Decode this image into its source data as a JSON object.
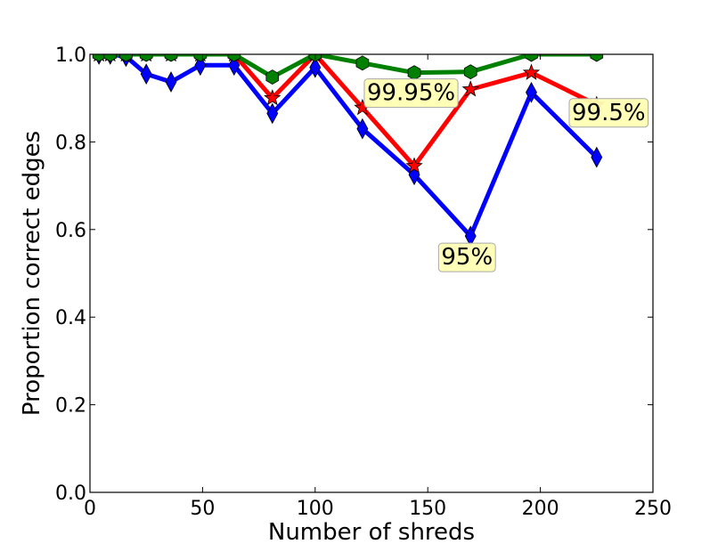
{
  "chart_data": {
    "type": "line",
    "title": "",
    "xlabel": "Number of shreds",
    "ylabel": "Proportion correct edges",
    "xlim": [
      0,
      250
    ],
    "ylim": [
      0.0,
      1.0
    ],
    "x_ticks": [
      "0",
      "50",
      "100",
      "150",
      "200",
      "250"
    ],
    "y_ticks": [
      "0.0",
      "0.2",
      "0.4",
      "0.6",
      "0.8",
      "1.0"
    ],
    "grid": false,
    "legend": "none",
    "x": [
      4,
      9,
      16,
      25,
      36,
      49,
      64,
      81,
      100,
      121,
      144,
      169,
      196,
      225
    ],
    "series": [
      {
        "color": "#0000ff",
        "marker": "diamond",
        "values": [
          1.0,
          1.0,
          0.995,
          0.955,
          0.937,
          0.975,
          0.975,
          0.865,
          0.97,
          0.83,
          0.725,
          0.585,
          0.913,
          0.765
        ]
      },
      {
        "color": "#ff0000",
        "marker": "star",
        "values": [
          1.0,
          1.0,
          1.0,
          1.0,
          1.0,
          1.0,
          1.0,
          0.9,
          1.0,
          0.878,
          0.745,
          0.92,
          0.958,
          0.885
        ]
      },
      {
        "color": "#008000",
        "marker": "hexagon",
        "values": [
          1.0,
          1.0,
          1.0,
          1.0,
          1.0,
          1.0,
          1.0,
          0.948,
          1.0,
          0.98,
          0.958,
          0.96,
          1.0,
          1.0
        ]
      }
    ],
    "annotations": [
      {
        "text": "99.95%",
        "x": 123,
        "y": 0.895,
        "series_color": "#ff0000"
      },
      {
        "text": "99.5%",
        "x": 214,
        "y": 0.85,
        "series_color": "#ff0000"
      },
      {
        "text": "95%",
        "x": 156,
        "y": 0.52,
        "series_color": "#0000ff"
      }
    ],
    "annotation_style": {
      "fill": "#ffffb3",
      "stroke": "#a8a8a8"
    }
  }
}
